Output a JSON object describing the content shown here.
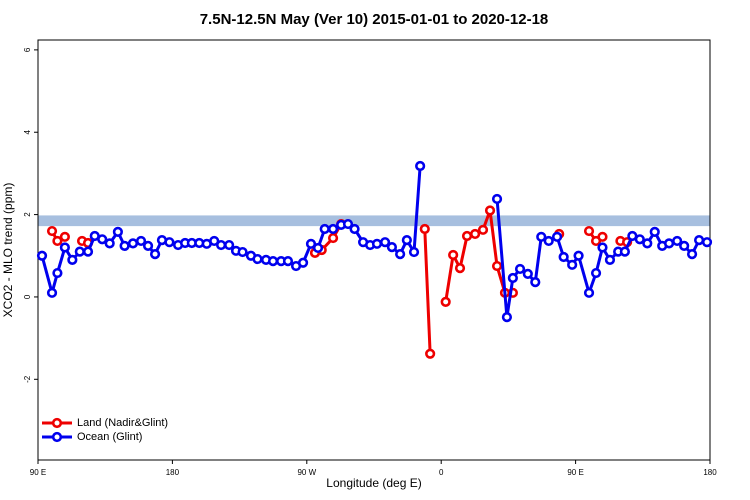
{
  "chart_data": {
    "type": "line",
    "title": "7.5N-12.5N May (Ver 10)   2015-01-01 to 2020-12-18",
    "x_label": "Longitude (deg E)",
    "y_label": "XCO2 - MLO trend (ppm)",
    "xlim": [
      90,
      540
    ],
    "xticks": [
      {
        "value": 90,
        "label": "90 E"
      },
      180,
      {
        "value": 270,
        "label": "90 W"
      },
      {
        "value": 360,
        "label": "0"
      },
      {
        "value": 450,
        "label": "90 E"
      },
      {
        "value": 540,
        "label": "180"
      }
    ],
    "ylim": [
      -3.96,
      6.24
    ],
    "yticks": [
      -2,
      0,
      2,
      4,
      6
    ],
    "reference_band": [
      1.72,
      1.98
    ],
    "band_color": "#a7bfdf",
    "legend": "bottom-left",
    "series": [
      {
        "name": "Land (Nadir&Glint)",
        "color": "#ee0000",
        "x": [
          99.4,
          103,
          108,
          null,
          119.5,
          123.5,
          null,
          275.5,
          280,
          287.6,
          293,
          null,
          349,
          352.6,
          null,
          363,
          368,
          372.6,
          377.3,
          382.7,
          388,
          392.7,
          397.4,
          402.7,
          408,
          null,
          439,
          null,
          459,
          463.7,
          468,
          null,
          480,
          484.5
        ],
        "values": [
          1.6,
          1.36,
          1.46,
          null,
          1.36,
          1.31,
          null,
          1.07,
          1.14,
          1.43,
          1.77,
          null,
          1.65,
          -1.38,
          null,
          -0.12,
          1.02,
          0.7,
          1.48,
          1.53,
          1.63,
          2.1,
          0.75,
          0.1,
          0.1,
          null,
          1.53,
          null,
          1.6,
          1.36,
          1.46,
          null,
          1.36,
          1.33
        ]
      },
      {
        "name": "Ocean (Glint)",
        "color": "#0000ee",
        "x": [
          92.7,
          99.4,
          103,
          108,
          113,
          118,
          123.5,
          128,
          133,
          138,
          143.5,
          148,
          153.6,
          159,
          163.7,
          168.4,
          173,
          178,
          183.8,
          188.5,
          193,
          198,
          203,
          208,
          212.6,
          218,
          222.6,
          227,
          232.6,
          237,
          242.7,
          247.4,
          252.8,
          257.4,
          262.8,
          267.5,
          272.8,
          277.5,
          282,
          287.6,
          293,
          297.6,
          302,
          307.7,
          312.4,
          317,
          322.4,
          327,
          332.5,
          337,
          341.8,
          345.9,
          null,
          397.4,
          404,
          408,
          412.8,
          418,
          423,
          427,
          432,
          437.6,
          442,
          447.7,
          452,
          459,
          463.7,
          468,
          473,
          478.5,
          483,
          488,
          493,
          498,
          503,
          508,
          512.6,
          518,
          522.7,
          528,
          532.7,
          538
        ],
        "values": [
          1.0,
          0.1,
          0.58,
          1.2,
          0.9,
          1.1,
          1.1,
          1.48,
          1.4,
          1.3,
          1.58,
          1.24,
          1.3,
          1.36,
          1.24,
          1.04,
          1.38,
          1.33,
          1.26,
          1.31,
          1.31,
          1.31,
          1.29,
          1.36,
          1.26,
          1.26,
          1.12,
          1.09,
          1.0,
          0.92,
          0.9,
          0.87,
          0.87,
          0.87,
          0.75,
          0.83,
          1.29,
          1.19,
          1.65,
          1.65,
          1.75,
          1.77,
          1.65,
          1.33,
          1.26,
          1.29,
          1.33,
          1.21,
          1.04,
          1.38,
          1.09,
          3.18,
          null,
          2.38,
          -0.49,
          0.46,
          0.68,
          0.56,
          0.36,
          1.46,
          1.36,
          1.46,
          0.97,
          0.78,
          1.0,
          0.1,
          0.58,
          1.2,
          0.9,
          1.1,
          1.1,
          1.48,
          1.4,
          1.3,
          1.58,
          1.24,
          1.3,
          1.36,
          1.24,
          1.04,
          1.38,
          1.33
        ]
      }
    ]
  }
}
